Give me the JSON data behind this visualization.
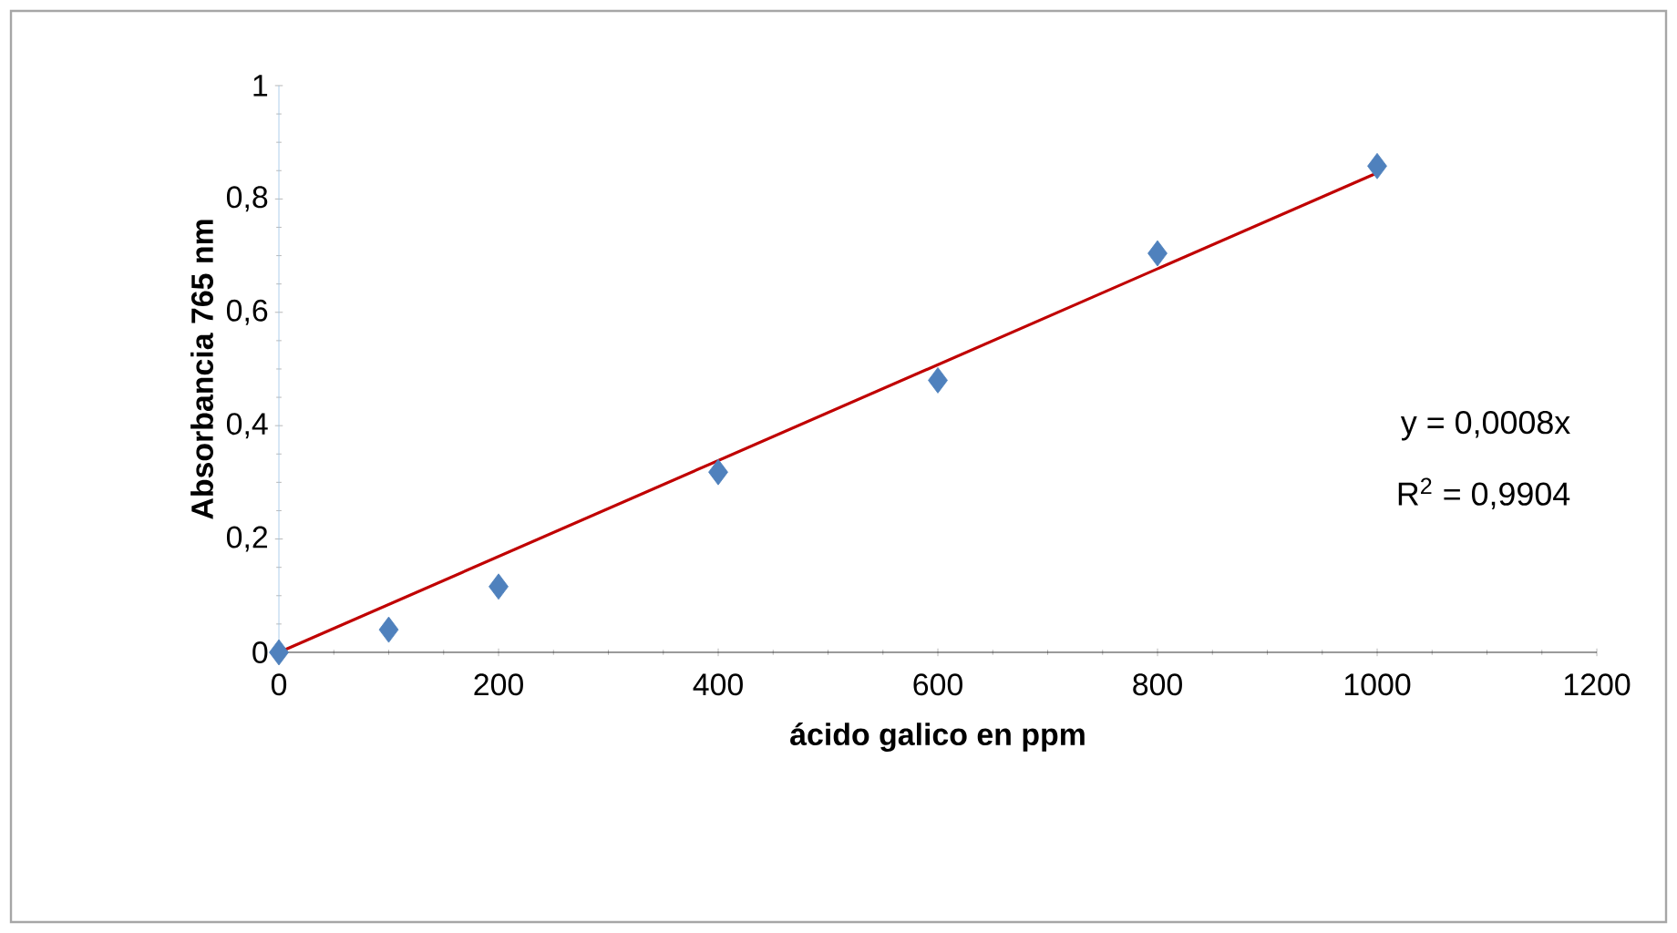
{
  "chart_data": {
    "type": "scatter",
    "xlabel": "ácido galico en ppm",
    "ylabel": "Absorbancia 765 nm",
    "annotations": [
      "y = 0,0008x",
      "R$^{2}$ = 0,9904"
    ],
    "series": [
      {
        "color": "#4f81bd",
        "marker": "diamond",
        "x": [
          0,
          100,
          200,
          400,
          600,
          800,
          1000
        ],
        "values": [
          0,
          0.04,
          0.116,
          0.318,
          0.48,
          0.704,
          0.858
        ]
      },
      {
        "type": "line",
        "color": "#c00000",
        "marker": "none",
        "x": [
          0,
          1000
        ],
        "values": [
          0,
          0.846
        ]
      }
    ],
    "xlim": [
      0,
      1200
    ],
    "xticks": [
      0,
      200,
      400,
      600,
      800,
      1000,
      1200
    ],
    "ylim": [
      0,
      1
    ],
    "yticks": [
      0,
      {
        "value": 0.2,
        "label": "0,2"
      },
      {
        "value": 0.4,
        "label": "0,4"
      },
      {
        "value": 0.6,
        "label": "0,6"
      },
      {
        "value": 0.8,
        "label": "0,8"
      },
      1
    ]
  }
}
